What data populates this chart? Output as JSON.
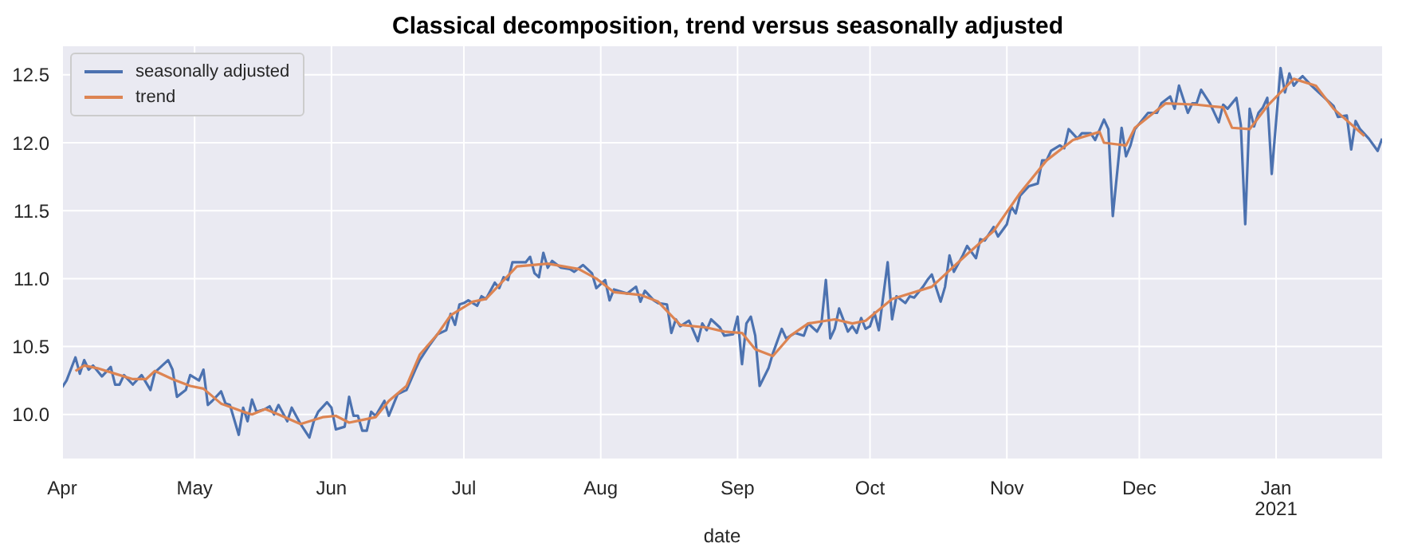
{
  "chart_data": {
    "type": "line",
    "title": "Classical decomposition, trend versus seasonally adjusted",
    "xlabel": "date",
    "xlim": [
      "2020-04-01",
      "2021-01-25"
    ],
    "xticks": [
      {
        "value": "2020-04-01",
        "label": "Apr"
      },
      {
        "value": "2020-05-01",
        "label": "May"
      },
      {
        "value": "2020-06-01",
        "label": "Jun"
      },
      {
        "value": "2020-07-01",
        "label": "Jul"
      },
      {
        "value": "2020-08-01",
        "label": "Aug"
      },
      {
        "value": "2020-09-01",
        "label": "Sep"
      },
      {
        "value": "2020-10-01",
        "label": "Oct"
      },
      {
        "value": "2020-11-01",
        "label": "Nov"
      },
      {
        "value": "2020-12-01",
        "label": "Dec"
      },
      {
        "value": "2021-01-01",
        "label": "Jan\n2021"
      }
    ],
    "ylim": [
      9.67,
      12.71
    ],
    "yticks": [
      {
        "value": 10,
        "label": "10.0"
      },
      {
        "value": 10.5,
        "label": "10.5"
      },
      {
        "value": 11,
        "label": "11.0"
      },
      {
        "value": 11.5,
        "label": "11.5"
      },
      {
        "value": 12,
        "label": "12.0"
      },
      {
        "value": 12.5,
        "label": "12.5"
      }
    ],
    "grid": true,
    "legend": "top left",
    "series": [
      {
        "name": "seasonally adjusted",
        "color": "#4c72b0",
        "x": [
          "2020-04-01",
          "2020-04-02",
          "2020-04-04",
          "2020-04-05",
          "2020-04-06",
          "2020-04-07",
          "2020-04-08",
          "2020-04-10",
          "2020-04-12",
          "2020-04-13",
          "2020-04-14",
          "2020-04-15",
          "2020-04-17",
          "2020-04-19",
          "2020-04-21",
          "2020-04-22",
          "2020-04-25",
          "2020-04-26",
          "2020-04-27",
          "2020-04-29",
          "2020-04-30",
          "2020-05-02",
          "2020-05-03",
          "2020-05-04",
          "2020-05-05",
          "2020-05-07",
          "2020-05-08",
          "2020-05-09",
          "2020-05-11",
          "2020-05-12",
          "2020-05-13",
          "2020-05-14",
          "2020-05-15",
          "2020-05-17",
          "2020-05-18",
          "2020-05-19",
          "2020-05-20",
          "2020-05-22",
          "2020-05-23",
          "2020-05-25",
          "2020-05-27",
          "2020-05-28",
          "2020-05-29",
          "2020-05-31",
          "2020-06-01",
          "2020-06-02",
          "2020-06-04",
          "2020-06-05",
          "2020-06-06",
          "2020-06-07",
          "2020-06-08",
          "2020-06-09",
          "2020-06-10",
          "2020-06-11",
          "2020-06-13",
          "2020-06-14",
          "2020-06-16",
          "2020-06-18",
          "2020-06-20",
          "2020-06-21",
          "2020-06-23",
          "2020-06-25",
          "2020-06-27",
          "2020-06-28",
          "2020-06-29",
          "2020-06-30",
          "2020-07-01",
          "2020-07-02",
          "2020-07-04",
          "2020-07-05",
          "2020-07-06",
          "2020-07-08",
          "2020-07-09",
          "2020-07-10",
          "2020-07-11",
          "2020-07-12",
          "2020-07-13",
          "2020-07-15",
          "2020-07-16",
          "2020-07-17",
          "2020-07-18",
          "2020-07-19",
          "2020-07-20",
          "2020-07-21",
          "2020-07-23",
          "2020-07-25",
          "2020-07-26",
          "2020-07-28",
          "2020-07-30",
          "2020-07-31",
          "2020-08-02",
          "2020-08-03",
          "2020-08-04",
          "2020-08-07",
          "2020-08-09",
          "2020-08-10",
          "2020-08-11",
          "2020-08-13",
          "2020-08-14",
          "2020-08-16",
          "2020-08-17",
          "2020-08-18",
          "2020-08-19",
          "2020-08-21",
          "2020-08-23",
          "2020-08-24",
          "2020-08-25",
          "2020-08-26",
          "2020-08-28",
          "2020-08-29",
          "2020-08-31",
          "2020-09-01",
          "2020-09-02",
          "2020-09-03",
          "2020-09-04",
          "2020-09-05",
          "2020-09-06",
          "2020-09-08",
          "2020-09-09",
          "2020-09-11",
          "2020-09-12",
          "2020-09-14",
          "2020-09-16",
          "2020-09-17",
          "2020-09-19",
          "2020-09-20",
          "2020-09-21",
          "2020-09-22",
          "2020-09-23",
          "2020-09-24",
          "2020-09-26",
          "2020-09-27",
          "2020-09-28",
          "2020-09-29",
          "2020-09-30",
          "2020-10-01",
          "2020-10-02",
          "2020-10-03",
          "2020-10-05",
          "2020-10-06",
          "2020-10-07",
          "2020-10-09",
          "2020-10-10",
          "2020-10-11",
          "2020-10-13",
          "2020-10-14",
          "2020-10-15",
          "2020-10-17",
          "2020-10-18",
          "2020-10-19",
          "2020-10-20",
          "2020-10-22",
          "2020-10-23",
          "2020-10-25",
          "2020-10-26",
          "2020-10-27",
          "2020-10-29",
          "2020-10-30",
          "2020-11-01",
          "2020-11-02",
          "2020-11-03",
          "2020-11-04",
          "2020-11-06",
          "2020-11-08",
          "2020-11-09",
          "2020-11-10",
          "2020-11-11",
          "2020-11-13",
          "2020-11-14",
          "2020-11-15",
          "2020-11-17",
          "2020-11-18",
          "2020-11-20",
          "2020-11-21",
          "2020-11-23",
          "2020-11-24",
          "2020-11-25",
          "2020-11-27",
          "2020-11-28",
          "2020-11-29",
          "2020-11-30",
          "2020-12-02",
          "2020-12-03",
          "2020-12-05",
          "2020-12-06",
          "2020-12-08",
          "2020-12-09",
          "2020-12-10",
          "2020-12-12",
          "2020-12-13",
          "2020-12-14",
          "2020-12-15",
          "2020-12-17",
          "2020-12-19",
          "2020-12-20",
          "2020-12-21",
          "2020-12-23",
          "2020-12-24",
          "2020-12-25",
          "2020-12-26",
          "2020-12-27",
          "2020-12-28",
          "2020-12-29",
          "2020-12-30",
          "2020-12-31",
          "2021-01-02",
          "2021-01-03",
          "2021-01-04",
          "2021-01-05",
          "2021-01-06",
          "2021-01-07",
          "2021-01-09",
          "2021-01-10",
          "2021-01-12",
          "2021-01-14",
          "2021-01-15",
          "2021-01-17",
          "2021-01-18",
          "2021-01-19",
          "2021-01-20",
          "2021-01-22",
          "2021-01-24",
          "2021-01-25"
        ],
        "values": [
          10.2,
          10.25,
          10.42,
          10.3,
          10.4,
          10.33,
          10.36,
          10.28,
          10.35,
          10.22,
          10.22,
          10.29,
          10.22,
          10.29,
          10.18,
          10.31,
          10.4,
          10.33,
          10.13,
          10.18,
          10.29,
          10.25,
          10.33,
          10.07,
          10.1,
          10.17,
          10.08,
          10.07,
          9.85,
          10.05,
          9.95,
          10.11,
          10.02,
          10.04,
          10.06,
          10.0,
          10.07,
          9.95,
          10.05,
          9.93,
          9.83,
          9.95,
          10.02,
          10.09,
          10.05,
          9.89,
          9.91,
          10.13,
          9.99,
          9.99,
          9.88,
          9.88,
          10.02,
          9.99,
          10.1,
          9.99,
          10.15,
          10.18,
          10.33,
          10.4,
          10.5,
          10.59,
          10.62,
          10.74,
          10.66,
          10.81,
          10.82,
          10.84,
          10.8,
          10.87,
          10.85,
          10.97,
          10.93,
          11.01,
          10.99,
          11.12,
          11.12,
          11.12,
          11.16,
          11.04,
          11.01,
          11.19,
          11.08,
          11.13,
          11.08,
          11.07,
          11.05,
          11.1,
          11.04,
          10.93,
          10.99,
          10.84,
          10.92,
          10.89,
          10.94,
          10.83,
          10.91,
          10.84,
          10.82,
          10.81,
          10.6,
          10.7,
          10.65,
          10.69,
          10.54,
          10.67,
          10.62,
          10.7,
          10.64,
          10.58,
          10.59,
          10.72,
          10.37,
          10.67,
          10.72,
          10.58,
          10.21,
          10.34,
          10.45,
          10.63,
          10.56,
          10.6,
          10.58,
          10.67,
          10.61,
          10.67,
          10.99,
          10.56,
          10.63,
          10.78,
          10.61,
          10.65,
          10.6,
          10.71,
          10.63,
          10.65,
          10.75,
          10.62,
          11.12,
          10.7,
          10.87,
          10.82,
          10.87,
          10.86,
          10.94,
          10.99,
          11.03,
          10.83,
          10.94,
          11.17,
          11.05,
          11.17,
          11.24,
          11.15,
          11.29,
          11.28,
          11.38,
          11.31,
          11.4,
          11.53,
          11.48,
          11.61,
          11.68,
          11.7,
          11.87,
          11.87,
          11.94,
          11.98,
          11.96,
          12.1,
          12.03,
          12.07,
          12.07,
          12.02,
          12.17,
          12.1,
          11.46,
          12.11,
          11.9,
          11.98,
          12.1,
          12.18,
          12.22,
          12.22,
          12.29,
          12.34,
          12.25,
          12.42,
          12.22,
          12.29,
          12.29,
          12.39,
          12.29,
          12.15,
          12.28,
          12.25,
          12.33,
          12.13,
          11.4,
          12.25,
          12.12,
          12.22,
          12.26,
          12.33,
          11.77,
          12.55,
          12.37,
          12.51,
          12.42,
          12.46,
          12.49,
          12.42,
          12.39,
          12.33,
          12.27,
          12.19,
          12.2,
          11.95,
          12.16,
          12.1,
          12.03,
          11.94,
          12.03
        ]
      },
      {
        "name": "trend",
        "color": "#dd8452",
        "x": [
          "2020-04-04",
          "2020-04-06",
          "2020-04-09",
          "2020-04-13",
          "2020-04-17",
          "2020-04-20",
          "2020-04-22",
          "2020-04-26",
          "2020-04-30",
          "2020-05-03",
          "2020-05-07",
          "2020-05-12",
          "2020-05-14",
          "2020-05-17",
          "2020-05-20",
          "2020-05-25",
          "2020-05-30",
          "2020-06-02",
          "2020-06-05",
          "2020-06-08",
          "2020-06-11",
          "2020-06-14",
          "2020-06-18",
          "2020-06-21",
          "2020-06-25",
          "2020-06-28",
          "2020-07-03",
          "2020-07-06",
          "2020-07-13",
          "2020-07-20",
          "2020-07-27",
          "2020-07-31",
          "2020-08-04",
          "2020-08-10",
          "2020-08-14",
          "2020-08-19",
          "2020-08-25",
          "2020-08-29",
          "2020-09-02",
          "2020-09-05",
          "2020-09-09",
          "2020-09-13",
          "2020-09-17",
          "2020-09-23",
          "2020-09-27",
          "2020-09-30",
          "2020-10-06",
          "2020-10-15",
          "2020-10-17",
          "2020-10-23",
          "2020-10-29",
          "2020-11-04",
          "2020-11-10",
          "2020-11-16",
          "2020-11-22",
          "2020-11-23",
          "2020-11-28",
          "2020-11-30",
          "2020-12-07",
          "2020-12-14",
          "2020-12-20",
          "2020-12-22",
          "2020-12-26",
          "2020-12-30",
          "2021-01-02",
          "2021-01-05",
          "2021-01-10",
          "2021-01-14",
          "2021-01-21"
        ],
        "values": [
          10.32,
          10.36,
          10.34,
          10.3,
          10.26,
          10.26,
          10.32,
          10.26,
          10.21,
          10.19,
          10.08,
          10.02,
          10.0,
          10.04,
          10.0,
          9.93,
          9.98,
          9.99,
          9.94,
          9.96,
          9.98,
          10.1,
          10.21,
          10.44,
          10.59,
          10.73,
          10.83,
          10.85,
          11.09,
          11.11,
          11.07,
          11.0,
          10.9,
          10.88,
          10.83,
          10.66,
          10.64,
          10.61,
          10.6,
          10.48,
          10.43,
          10.58,
          10.67,
          10.7,
          10.67,
          10.69,
          10.85,
          10.94,
          11.0,
          11.18,
          11.35,
          11.63,
          11.87,
          12.02,
          12.08,
          12.0,
          11.98,
          12.11,
          12.29,
          12.28,
          12.26,
          12.11,
          12.1,
          12.27,
          12.37,
          12.47,
          12.42,
          12.25,
          12.05
        ]
      }
    ]
  }
}
